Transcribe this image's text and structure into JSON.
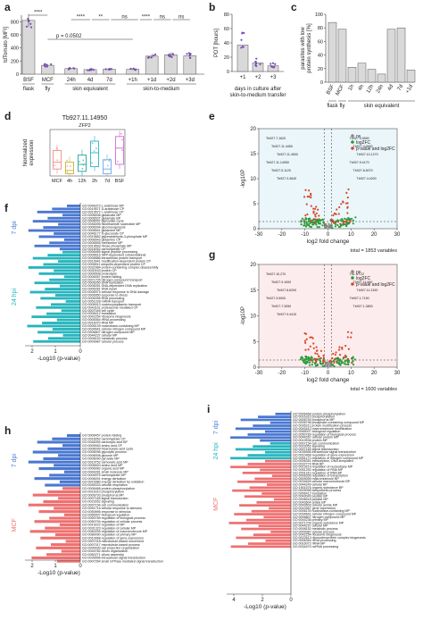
{
  "panels": {
    "a": {
      "label": "a",
      "ylabel": "tdTomato [MFI]",
      "categories": [
        "BSF",
        "MCF",
        "24h",
        "4d",
        "7d",
        "+1h",
        "+1d",
        "+2d",
        "+3d"
      ],
      "values": [
        820,
        135,
        85,
        70,
        75,
        75,
        275,
        295,
        280
      ],
      "yticks": [
        "0",
        "200",
        "400",
        "600",
        "800"
      ],
      "groups": [
        "flask",
        "fly",
        "skin equivalent",
        "skin-to-medium"
      ],
      "sig": [
        "****",
        "****",
        "**",
        "ns",
        "****",
        "ns",
        "ns"
      ],
      "pvalue": "p = 0.0502"
    },
    "b": {
      "label": "b",
      "ylabel": "PDT [hours]",
      "categories": [
        "+1",
        "+2",
        "+3"
      ],
      "values": [
        37,
        12,
        8
      ],
      "yticks": [
        "0",
        "20",
        "40",
        "60",
        "80"
      ],
      "xlabel": "days in culture after skin-to-medium transfer"
    },
    "c": {
      "label": "c",
      "ylabel": "parasites with low protein synthesis [%]",
      "categories": [
        "BSF",
        "MCF",
        "1h",
        "4h",
        "12h",
        "24h",
        "4d",
        "7d",
        "+1d"
      ],
      "values": [
        88,
        78,
        22,
        28,
        19,
        12,
        78,
        80,
        18
      ],
      "yticks": [
        "0",
        "20",
        "40",
        "60",
        "80",
        "100"
      ],
      "groups": [
        "flask",
        "fly",
        "skin equivalent"
      ]
    },
    "d": {
      "label": "d",
      "title": "Tb927.11.14950",
      "subtitle": "ZFP2",
      "ylabel": "Normalized expression",
      "categories": [
        "MCF",
        "4h",
        "12h",
        "2h",
        "7d",
        "BSF"
      ],
      "colors": [
        "#f28b82",
        "#c9b037",
        "#22a39a",
        "#2ab4c6",
        "#6aa7e6",
        "#d26ad0"
      ]
    },
    "e": {
      "label": "e",
      "ylabel": "-log10P",
      "xlabel": "log2 fold change",
      "total": "total = 1853 variables",
      "xticks": [
        "-30",
        "-20",
        "-10",
        "0",
        "10",
        "20",
        "30"
      ],
      "yticks": [
        "0",
        "5",
        "10",
        "15",
        "20"
      ],
      "legend": [
        "ns",
        "log2FC",
        "p-value and log2FC"
      ],
      "genes": [
        "Tb927.7.1620",
        "Tb927.11.4450",
        "Tb927.11.4500",
        "Tb927.11.14950",
        "Tb927.5.1120",
        "Tb927.3.3640",
        "Tb927.4.3690",
        "Tb927.4.3650",
        "Tb927.10.1270",
        "Tb927.9.4170",
        "Tb927.6.5070",
        "Tb927.4.4200"
      ]
    },
    "g": {
      "label": "g",
      "ylabel": "-log10P",
      "xlabel": "log2 fold change",
      "total": "total = 1600 variables",
      "xticks": [
        "-30",
        "-20",
        "-10",
        "0",
        "10",
        "20",
        "30"
      ],
      "yticks": [
        "0",
        "5",
        "10",
        "15",
        "20"
      ],
      "legend": [
        "ns",
        "log2FC",
        "p-value and log2FC"
      ],
      "genes": [
        "Tb927.10.270",
        "Tb927.9.1000",
        "Tb927.8.6200",
        "Tb927.3.5000",
        "Tb927.7.3050",
        "Tb927.9.4410",
        "Tb1.NT.22",
        "Tb927.11.660",
        "Tb927.11.3150",
        "Tb927.1.7190",
        "Tb927.1.3800"
      ]
    },
    "f": {
      "label": "f",
      "xlabel": "-Log10 (p-value)",
      "xticks": [
        "2",
        "1",
        "0"
      ],
      "groups": [
        {
          "name": "7 dpi",
          "color": "#4a78d1",
          "terms": [
            "GO:0046373 L-arabinose MP",
            "GO:0019571 D-arabinose CP",
            "GO:0019572 L-arabinose CP",
            "GO:0006536 glutamate MP",
            "GO:0006537 glutamate BP",
            "GO:0006097 glyoxylate cycle",
            "GO:0046496 nicotinamide nucleotide MP",
            "GO:0006094 gluconeogenesis",
            "GO:0006541 glutamine MP",
            "GO:0046177 D-gluconate CP",
            "GO:0019682 glyceraldehyde-3-phosphate MP",
            "GO:0006543 glutamine CP",
            "GO:0006555 methionine MP",
            "GO:0019693 ribose phosphate MP",
            "GO:0016052 carbohydrate CP"
          ]
        },
        {
          "name": "24 hpi",
          "color": "#27b5bd",
          "terms": [
            "GO:0006465 signal peptide processing",
            "GO:0006616 SRP-dependent cotranslational",
            "GO:0006886 intracellular protein transport",
            "GO:0019941 modification-dependent protein CP",
            "GO:0006511 ubiquitin-dependent protein CP",
            "GO:0032984 protein-containing complex disassembly",
            "GO:0030163 protein CP",
            "GO:0006508 proteolysis",
            "GO:0006457 protein folding",
            "GO:0071705 nitrogen compound transport",
            "GO:0006260 DNA replication",
            "GO:0006261 DNA-dependent DNA replication",
            "GO:0006281 DNA repair",
            "GO:0006974 cellular response to DNA damage",
            "GO:0006950 response to stress",
            "GO:0006396 RNA processing",
            "GO:0051028 mRNA transport",
            "GO:0006913 nucleocytoplasmic transport",
            "GO:0043161 proteasome-mediated CP",
            "GO:0007049 cell cycle",
            "GO:0006412 translation",
            "GO:0042254 ribosome biogenesis",
            "GO:0006364 rRNA processing",
            "GO:0016070 RNA MP",
            "GO:0006139 nucleobase-containing MP",
            "GO:0034641 cellular nitrogen compound MP",
            "GO:0006807 nitrogen compound MP",
            "GO:0044237 cellular MP",
            "GO:0008152 metabolic process",
            "GO:0009987 cellular process"
          ]
        }
      ]
    },
    "h": {
      "label": "h",
      "xlabel": "-Log10 (p-value)",
      "xticks": [
        "2",
        "1",
        "0"
      ],
      "groups": [
        {
          "name": "7 dpi",
          "color": "#4a78d1",
          "terms": [
            "GO:0006457 protein folding",
            "GO:0016052 carbohydrate CP",
            "GO:0046394 carboxylic acid BP",
            "GO:0009063 amino acid CP",
            "GO:0006099 tricarboxylic acid cycle",
            "GO:0006096 glycolytic process",
            "GO:0006006 glucose MP",
            "GO:0006090 pyruvate MP",
            "GO:0019752 carboxylic acid MP",
            "GO:0006520 amino acid MP",
            "GO:0006082 organic acid MP",
            "GO:0044281 small molecule MP",
            "GO:0005975 carbohydrate MP",
            "GO:0006091 energy derivation",
            "GO:0015980 energy derivation by oxidation",
            "GO:0045333 cellular respiration"
          ]
        },
        {
          "name": "MCF",
          "color": "#ee7070",
          "terms": [
            "GO:0006468 protein phosphorylation",
            "GO:0016310 phosphorylation",
            "GO:0006793 phosphorus MP",
            "GO:0007165 signal transduction",
            "GO:0023052 signaling",
            "GO:0007154 cell communication",
            "GO:0051716 cellular response to stimulus",
            "GO:0050896 response to stimulus",
            "GO:0065007 biological regulation",
            "GO:0050789 regulation of biological process",
            "GO:0050794 regulation of cellular process",
            "GO:0019222 regulation of MP",
            "GO:0031323 regulation of cellular MP",
            "GO:0060255 regulation of macromolecule MP",
            "GO:0080090 regulation of primary MP",
            "GO:0010468 regulation of gene expression",
            "GO:0007018 microtubule-based movement",
            "GO:0007017 microtubule-based process",
            "GO:0030030 cell projection organization",
            "GO:0044782 cilium organization",
            "GO:0060271 cilium assembly",
            "GO:0035556 intracellular signal transduction",
            "GO:0007264 small GTPase mediated signal transduction"
          ]
        }
      ]
    },
    "i": {
      "label": "i",
      "xlabel": "-Log10 (p-value)",
      "xticks": [
        "4",
        "2",
        "0"
      ],
      "groups": [
        {
          "name": "7 dpi",
          "color": "#4a78d1",
          "terms": [
            "GO:0006468 protein phosphorylation",
            "GO:0016310 phosphorylation",
            "GO:0006793 phosphorus MP",
            "GO:0006796 phosphate-containing compound MP",
            "GO:0036211 protein modification process",
            "GO:0043412 macromolecule modification",
            "GO:0065007 biological regulation",
            "GO:0050789 regulation of biological process",
            "GO:0044267 cellular protein MP",
            "GO:0019538 protein MP"
          ]
        },
        {
          "name": "24 hpi",
          "color": "#27b5bd",
          "terms": [
            "GO:0007154 cell communication",
            "GO:0023052 signaling",
            "GO:0007165 signal transduction",
            "GO:0035556 intracellular signal transduction",
            "GO:0010468 regulation of gene expression",
            "GO:0051171 regulation of nitrogen compound MP"
          ]
        },
        {
          "name": "MCF",
          "color": "#ee7070",
          "terms": [
            "GO:0006351 transcription, DNA-templated",
            "GO:0032774 RNA BP",
            "GO:0019219 regulation of nucleobase MP",
            "GO:0051252 regulation of RNA MP",
            "GO:2001141 regulation of RNA BP",
            "GO:0006355 regulation of transcription",
            "GO:0009059 macromolecule BP",
            "GO:0034645 cellular macromolecule BP",
            "GO:0044249 cellular BP",
            "GO:1901576 organic substance BP",
            "GO:0009058 biosynthetic process",
            "GO:0006412 translation",
            "GO:0043043 peptide BP",
            "GO:0006518 peptide MP",
            "GO:0043604 amide BP",
            "GO:0043603 cellular amide MP",
            "GO:0010467 gene expression",
            "GO:0006139 nucleobase-containing MP",
            "GO:0034641 cellular nitrogen compound MP",
            "GO:0006807 nitrogen compound MP",
            "GO:0044238 primary MP",
            "GO:0071704 organic substance MP",
            "GO:0044237 cellular MP",
            "GO:0008152 metabolic process",
            "GO:0009987 cellular process",
            "GO:0042254 ribosome biogenesis",
            "GO:0022613 ribonucleoprotein complex biogenesis",
            "GO:0006364 rRNA processing",
            "GO:0016072 rRNA MP",
            "GO:0034470 ncRNA processing"
          ]
        }
      ]
    }
  }
}
